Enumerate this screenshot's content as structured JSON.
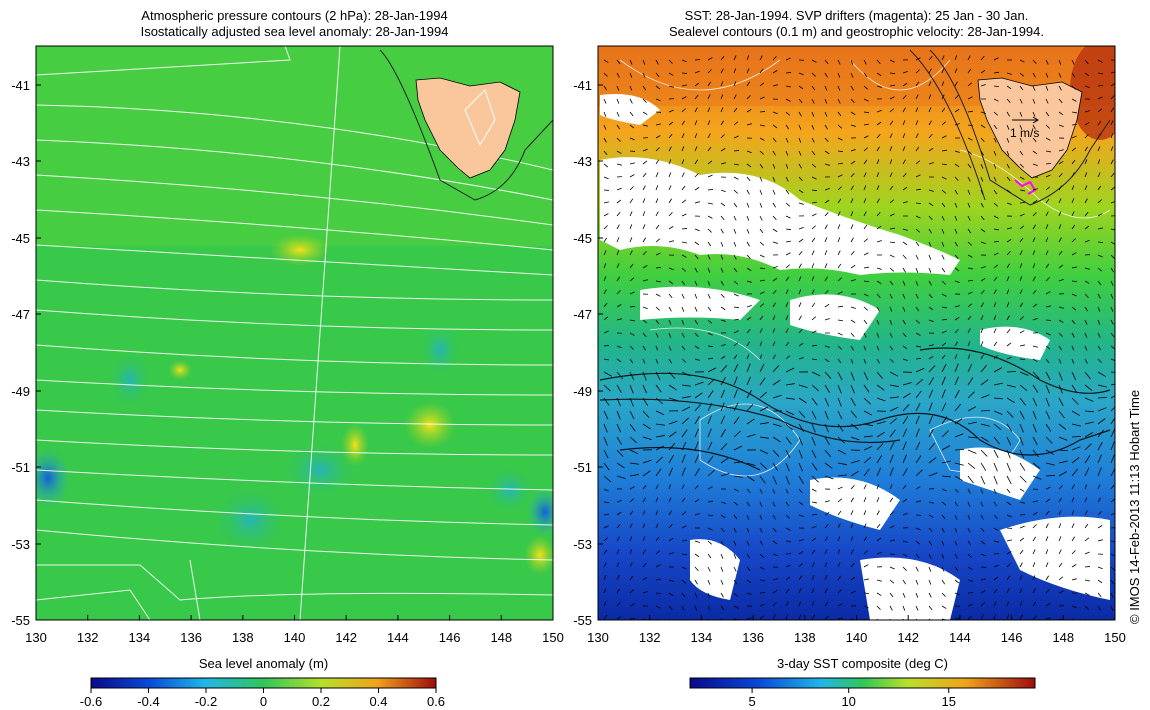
{
  "left_panel": {
    "title_line1": "Atmospheric pressure contours (2 hPa): 28-Jan-1994",
    "title_line2": "Isostatically adjusted sea level anomaly: 28-Jan-1994",
    "y_ticks": [
      "-41",
      "-43",
      "-45",
      "-47",
      "-49",
      "-51",
      "-53",
      "-55"
    ],
    "x_ticks": [
      "130",
      "132",
      "134",
      "136",
      "138",
      "140",
      "142",
      "144",
      "146",
      "148",
      "150"
    ],
    "colorbar": {
      "label": "Sea level anomaly (m)",
      "ticks": [
        "-0.6",
        "-0.4",
        "-0.2",
        "0",
        "0.2",
        "0.4",
        "0.6"
      ]
    }
  },
  "right_panel": {
    "title_line1": "SST: 28-Jan-1994. SVP drifters (magenta): 25 Jan - 30 Jan.",
    "title_line2": "Sealevel contours (0.1 m) and geostrophic velocity: 28-Jan-1994.",
    "y_ticks": [
      "-41",
      "-43",
      "-45",
      "-47",
      "-49",
      "-51",
      "-53",
      "-55"
    ],
    "x_ticks": [
      "130",
      "132",
      "134",
      "136",
      "138",
      "140",
      "142",
      "144",
      "146",
      "148",
      "150"
    ],
    "velocity_scale_label": "1 m/s",
    "colorbar": {
      "label": "3-day SST composite (deg C)",
      "ticks": [
        "5",
        "10",
        "15"
      ]
    }
  },
  "footer_stamp": "© IMOS 14-Feb-2013 11:13 Hobart Time",
  "colors": {
    "land": "#f9c79b",
    "drifter": "#ff00ff",
    "ocean_base_left": "#35c94a",
    "ocean_base_right_warm": "#f29a1a"
  }
}
